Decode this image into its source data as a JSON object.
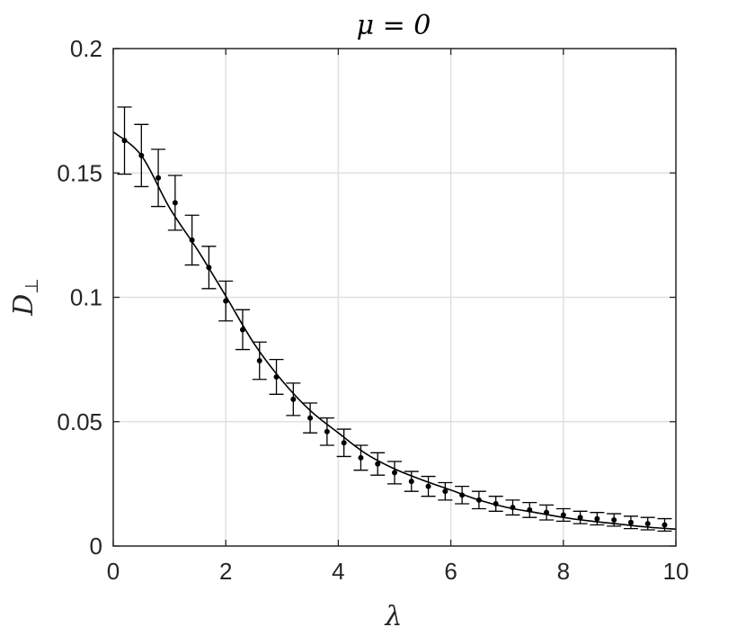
{
  "chart_data": {
    "type": "scatter",
    "title": "μ = 0",
    "xlabel": "λ",
    "ylabel": "D",
    "ylabel_subscript": "⊥",
    "xlim": [
      0,
      10
    ],
    "ylim": [
      0,
      0.2
    ],
    "grid": true,
    "legend": "none",
    "xticks": [
      0,
      2,
      4,
      6,
      8,
      10
    ],
    "xtick_labels": [
      "0",
      "2",
      "4",
      "6",
      "8",
      "10"
    ],
    "yticks": [
      0,
      0.05,
      0.1,
      0.15,
      0.2
    ],
    "ytick_labels": [
      "0",
      "0.05",
      "0.1",
      "0.15",
      "0.2"
    ],
    "series": [
      {
        "kind": "points_with_error_bars",
        "x": [
          0.2,
          0.5,
          0.8,
          1.1,
          1.4,
          1.7,
          2.0,
          2.3,
          2.6,
          2.9,
          3.2,
          3.5,
          3.8,
          4.1,
          4.4,
          4.7,
          5.0,
          5.3,
          5.6,
          5.9,
          6.2,
          6.5,
          6.8,
          7.1,
          7.4,
          7.7,
          8.0,
          8.3,
          8.6,
          8.9,
          9.2,
          9.5,
          9.8
        ],
        "y": [
          0.163,
          0.157,
          0.148,
          0.138,
          0.123,
          0.112,
          0.0985,
          0.087,
          0.0745,
          0.068,
          0.059,
          0.0515,
          0.046,
          0.0415,
          0.0355,
          0.033,
          0.0295,
          0.026,
          0.024,
          0.022,
          0.0205,
          0.0185,
          0.017,
          0.0155,
          0.0145,
          0.0135,
          0.0125,
          0.0115,
          0.011,
          0.0105,
          0.0095,
          0.009,
          0.0085
        ],
        "err": [
          0.0135,
          0.0125,
          0.0115,
          0.011,
          0.01,
          0.0085,
          0.008,
          0.008,
          0.0075,
          0.007,
          0.0065,
          0.006,
          0.0055,
          0.0055,
          0.005,
          0.0045,
          0.0045,
          0.004,
          0.004,
          0.0035,
          0.0035,
          0.0035,
          0.003,
          0.003,
          0.003,
          0.003,
          0.0025,
          0.0025,
          0.0025,
          0.0025,
          0.0025,
          0.0025,
          0.0025
        ]
      },
      {
        "kind": "line",
        "x": [
          0,
          0.5,
          1.0,
          1.5,
          2.0,
          2.5,
          3.0,
          3.5,
          4.0,
          4.5,
          5.0,
          5.5,
          6.0,
          6.5,
          7.0,
          7.5,
          8.0,
          8.5,
          9.0,
          9.5,
          10.0
        ],
        "y": [
          0.1665,
          0.157,
          0.136,
          0.119,
          0.1005,
          0.0815,
          0.0665,
          0.0545,
          0.0455,
          0.037,
          0.031,
          0.0265,
          0.0225,
          0.0185,
          0.0155,
          0.0135,
          0.0115,
          0.01,
          0.0088,
          0.0076,
          0.0068
        ]
      }
    ],
    "colors": {
      "marker": "#000000",
      "line": "#000000",
      "grid": "#e0e0e0",
      "axes": "#262626"
    }
  }
}
